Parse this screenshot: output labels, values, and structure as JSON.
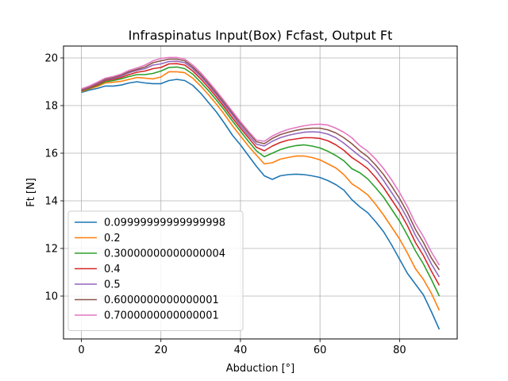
{
  "chart_data": {
    "type": "line",
    "title": "Infraspinatus Input(Box) Fcfast, Output Ft",
    "xlabel": "Abduction [°]",
    "ylabel": "Ft [N]",
    "xlim": [
      -4.5,
      94.5
    ],
    "ylim": [
      8.2,
      20.5
    ],
    "xticks": [
      0,
      20,
      40,
      60,
      80
    ],
    "yticks": [
      10,
      12,
      14,
      16,
      18,
      20
    ],
    "grid": true,
    "legend_position": "lower-left",
    "x": [
      0,
      2,
      4,
      6,
      8,
      10,
      12,
      14,
      16,
      18,
      20,
      22,
      24,
      26,
      28,
      30,
      32,
      34,
      36,
      38,
      40,
      42,
      44,
      46,
      48,
      50,
      52,
      54,
      56,
      58,
      60,
      62,
      64,
      66,
      68,
      70,
      72,
      74,
      76,
      78,
      80,
      82,
      84,
      86,
      88,
      90
    ],
    "series": [
      {
        "name": "0.09999999999999998",
        "color": "#1f77b4",
        "values": [
          18.55,
          18.65,
          18.72,
          18.82,
          18.82,
          18.86,
          18.95,
          19.0,
          18.95,
          18.92,
          18.92,
          19.05,
          19.1,
          19.05,
          18.85,
          18.52,
          18.12,
          17.72,
          17.25,
          16.75,
          16.35,
          15.9,
          15.45,
          15.05,
          14.9,
          15.05,
          15.1,
          15.12,
          15.1,
          15.05,
          14.98,
          14.85,
          14.68,
          14.45,
          14.05,
          13.75,
          13.5,
          13.12,
          12.7,
          12.15,
          11.55,
          10.95,
          10.5,
          10.05,
          9.35,
          8.6
        ]
      },
      {
        "name": "0.2",
        "color": "#ff7f0e",
        "values": [
          18.58,
          18.7,
          18.8,
          18.95,
          18.98,
          19.02,
          19.1,
          19.18,
          19.15,
          19.12,
          19.2,
          19.42,
          19.42,
          19.38,
          19.15,
          18.82,
          18.45,
          18.05,
          17.62,
          17.15,
          16.72,
          16.3,
          15.92,
          15.55,
          15.6,
          15.75,
          15.82,
          15.88,
          15.88,
          15.82,
          15.72,
          15.55,
          15.38,
          15.1,
          14.72,
          14.5,
          14.25,
          13.85,
          13.4,
          12.9,
          12.4,
          11.8,
          11.15,
          10.7,
          10.12,
          9.4
        ]
      },
      {
        "name": "0.30000000000000004",
        "color": "#2ca02c",
        "values": [
          18.6,
          18.72,
          18.85,
          19.0,
          19.05,
          19.12,
          19.22,
          19.3,
          19.3,
          19.35,
          19.45,
          19.6,
          19.62,
          19.55,
          19.32,
          18.98,
          18.62,
          18.22,
          17.8,
          17.35,
          16.92,
          16.5,
          16.1,
          15.85,
          16.0,
          16.15,
          16.25,
          16.32,
          16.35,
          16.3,
          16.22,
          16.08,
          15.9,
          15.68,
          15.35,
          15.18,
          14.92,
          14.55,
          14.15,
          13.65,
          13.15,
          12.55,
          11.9,
          11.35,
          10.7,
          10.0
        ]
      },
      {
        "name": "0.4",
        "color": "#d62728",
        "values": [
          18.62,
          18.75,
          18.88,
          19.05,
          19.1,
          19.18,
          19.3,
          19.4,
          19.45,
          19.55,
          19.6,
          19.75,
          19.76,
          19.7,
          19.45,
          19.12,
          18.75,
          18.35,
          17.92,
          17.48,
          17.05,
          16.65,
          16.25,
          16.1,
          16.3,
          16.45,
          16.55,
          16.6,
          16.65,
          16.65,
          16.62,
          16.52,
          16.35,
          16.12,
          15.82,
          15.6,
          15.35,
          14.98,
          14.55,
          14.05,
          13.55,
          12.95,
          12.25,
          11.7,
          11.05,
          10.45
        ]
      },
      {
        "name": "0.5",
        "color": "#9467bd",
        "values": [
          18.64,
          18.78,
          18.92,
          19.08,
          19.14,
          19.24,
          19.38,
          19.48,
          19.55,
          19.7,
          19.75,
          19.85,
          19.86,
          19.8,
          19.55,
          19.22,
          18.85,
          18.45,
          18.02,
          17.6,
          17.15,
          16.75,
          16.38,
          16.3,
          16.5,
          16.65,
          16.75,
          16.82,
          16.88,
          16.9,
          16.88,
          16.8,
          16.65,
          16.42,
          16.15,
          15.88,
          15.65,
          15.3,
          14.85,
          14.35,
          13.85,
          13.25,
          12.55,
          12.0,
          11.35,
          10.8
        ]
      },
      {
        "name": "0.6000000000000001",
        "color": "#8c564b",
        "values": [
          18.66,
          18.8,
          18.95,
          19.1,
          19.18,
          19.28,
          19.42,
          19.52,
          19.62,
          19.8,
          19.88,
          19.95,
          19.95,
          19.88,
          19.62,
          19.3,
          18.92,
          18.52,
          18.1,
          17.68,
          17.25,
          16.85,
          16.48,
          16.4,
          16.62,
          16.78,
          16.88,
          16.96,
          17.02,
          17.05,
          17.05,
          16.98,
          16.85,
          16.65,
          16.4,
          16.1,
          15.85,
          15.5,
          15.1,
          14.62,
          14.1,
          13.5,
          12.8,
          12.25,
          11.6,
          11.1
        ]
      },
      {
        "name": "0.7000000000000001",
        "color": "#e377c2",
        "values": [
          18.7,
          18.82,
          18.98,
          19.15,
          19.22,
          19.32,
          19.48,
          19.58,
          19.7,
          19.88,
          19.98,
          20.02,
          20.02,
          19.95,
          19.7,
          19.38,
          19.0,
          18.6,
          18.18,
          17.75,
          17.32,
          16.92,
          16.55,
          16.5,
          16.72,
          16.88,
          17.0,
          17.08,
          17.15,
          17.2,
          17.22,
          17.18,
          17.05,
          16.88,
          16.65,
          16.32,
          16.08,
          15.75,
          15.35,
          14.88,
          14.35,
          13.75,
          13.05,
          12.5,
          11.85,
          11.3
        ]
      }
    ]
  }
}
